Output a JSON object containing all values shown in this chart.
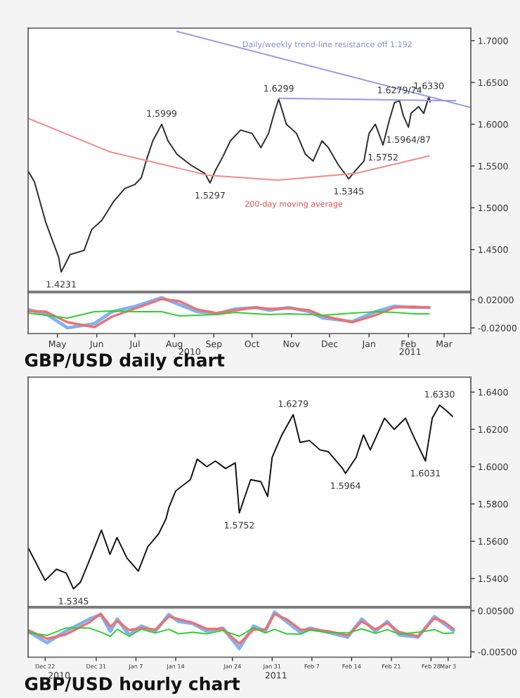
{
  "chart_data": [
    {
      "type": "line",
      "tick_labels": "y",
      "xlim": [
        "2010-04-22",
        "2011-04-05"
      ],
      "ylim": [
        1.4,
        1.715
      ],
      "yticks": [
        {
          "value": 1.45,
          "label": "1.4500"
        },
        {
          "value": 1.5,
          "label": "1.5000"
        },
        {
          "value": 1.55,
          "label": "1.5500"
        },
        {
          "value": 1.6,
          "label": "1.6000"
        },
        {
          "value": 1.65,
          "label": "1.6500"
        },
        {
          "value": 1.7,
          "label": "1.7000"
        }
      ],
      "series": [
        {
          "color": "#2b2b2b",
          "x": [
            "2010-04-22",
            "2010-04-27",
            "2010-05-06",
            "2010-05-16",
            "2010-05-18",
            "2010-05-25",
            "2010-06-05",
            "2010-06-11",
            "2010-06-19",
            "2010-06-28",
            "2010-07-07",
            "2010-07-15",
            "2010-07-20",
            "2010-07-24",
            "2010-07-29",
            "2010-08-05",
            "2010-08-10",
            "2010-08-17",
            "2010-08-28",
            "2010-09-08",
            "2010-09-12",
            "2010-09-16",
            "2010-09-22",
            "2010-09-28",
            "2010-10-06",
            "2010-10-15",
            "2010-10-22",
            "2010-10-28",
            "2010-11-02",
            "2010-11-05",
            "2010-11-11",
            "2010-11-19",
            "2010-11-26",
            "2010-12-02",
            "2010-12-09",
            "2010-12-14",
            "2010-12-22",
            "2010-12-28",
            "2010-12-30",
            "2011-01-04",
            "2011-01-11",
            "2011-01-15",
            "2011-01-20",
            "2011-01-26",
            "2011-01-31",
            "2011-02-04",
            "2011-02-08",
            "2011-02-11",
            "2011-02-15",
            "2011-02-17",
            "2011-02-23",
            "2011-02-27",
            "2011-03-03",
            "2011-03-04"
          ],
          "values": [
            1.544,
            1.531,
            1.482,
            1.441,
            1.4231,
            1.444,
            1.449,
            1.474,
            1.485,
            1.507,
            1.523,
            1.528,
            1.536,
            1.557,
            1.58,
            1.5999,
            1.58,
            1.564,
            1.551,
            1.541,
            1.5297,
            1.544,
            1.561,
            1.58,
            1.593,
            1.589,
            1.572,
            1.589,
            1.616,
            1.6299,
            1.6,
            1.589,
            1.564,
            1.556,
            1.58,
            1.572,
            1.551,
            1.539,
            1.5345,
            1.544,
            1.556,
            1.589,
            1.6,
            1.5752,
            1.605,
            1.626,
            1.6279,
            1.61,
            1.5964,
            1.613,
            1.621,
            1.613,
            1.633,
            1.627
          ]
        },
        {
          "color": "#f08a8a",
          "x": [
            "2010-04-22",
            "2010-06-25",
            "2010-09-10",
            "2010-11-04",
            "2011-01-04",
            "2011-03-03"
          ],
          "values": [
            1.607,
            1.567,
            1.539,
            1.533,
            1.541,
            1.562
          ]
        },
        {
          "color": "#9999dd",
          "x": [
            "2010-08-17",
            "2011-04-05"
          ],
          "values": [
            1.711,
            1.62
          ]
        },
        {
          "color": "#9999dd",
          "x": [
            "2010-11-05",
            "2011-03-24"
          ],
          "values": [
            1.631,
            1.628
          ]
        }
      ],
      "annotations": [
        {
          "text": "1.4231",
          "x": "2010-05-18",
          "y": 1.4231
        },
        {
          "text": "1.5999",
          "x": "2010-08-05",
          "y": 1.5999
        },
        {
          "text": "1.5297",
          "x": "2010-09-12",
          "y": 1.5297
        },
        {
          "text": "1.6299",
          "x": "2010-11-05",
          "y": 1.6299
        },
        {
          "text": "1.5345",
          "x": "2010-12-30",
          "y": 1.5345
        },
        {
          "text": "1.5752",
          "x": "2011-01-26",
          "y": 1.5752
        },
        {
          "text": "1.6279/74",
          "x": "2011-02-08",
          "y": 1.6279
        },
        {
          "text": "1.5964/87",
          "x": "2011-02-15",
          "y": 1.5964
        },
        {
          "text": "1.6330",
          "x": "2011-03-03",
          "y": 1.633
        },
        "Daily/weekly trend-line resistance off 1.192",
        "200-day moving average"
      ]
    },
    {
      "type": "line",
      "xlim": [
        "2010-04-22",
        "2011-04-05"
      ],
      "ylim": [
        -0.028,
        0.03
      ],
      "yticks": [
        {
          "value": -0.02,
          "label": "-0.02000"
        },
        {
          "value": 0.02,
          "label": "0.02000"
        }
      ],
      "xticks": [
        {
          "value": "2010-05-15",
          "label": "May"
        },
        {
          "value": "2010-06-15",
          "label": "Jun"
        },
        {
          "value": "2010-07-15",
          "label": "Jul"
        },
        {
          "value": "2010-08-15",
          "label": "Aug"
        },
        {
          "value": "2010-09-15",
          "label": "Sep"
        },
        {
          "value": "2010-10-15",
          "label": "Oct"
        },
        {
          "value": "2010-11-15",
          "label": "Nov"
        },
        {
          "value": "2010-12-15",
          "label": "Dec"
        },
        {
          "value": "2011-01-15",
          "label": "Jan"
        },
        {
          "value": "2011-02-15",
          "label": "Feb"
        },
        {
          "value": "2011-03-15",
          "label": "Mar"
        }
      ],
      "x": [
        "2010-04-22",
        "2010-05-06",
        "2010-05-23",
        "2010-06-13",
        "2010-06-27",
        "2010-07-16",
        "2010-08-05",
        "2010-08-19",
        "2010-09-02",
        "2010-09-17",
        "2010-10-02",
        "2010-10-18",
        "2010-10-29",
        "2010-11-13",
        "2010-11-29",
        "2010-12-10",
        "2011-01-02",
        "2011-01-20",
        "2011-02-04",
        "2011-02-19",
        "2011-03-03"
      ],
      "series": [
        {
          "color": "#7fb2f0",
          "values": [
            0.006,
            0,
            -0.02,
            -0.014,
            0.003,
            0.011,
            0.023,
            0.013,
            0.003,
            0,
            0.007,
            0.009,
            0.005,
            0.009,
            0.003,
            -0.006,
            -0.011,
            0.003,
            0.011,
            0.009,
            0.009
          ]
        },
        {
          "color": "#f07070",
          "values": [
            0.004,
            0.003,
            -0.012,
            -0.019,
            -0.004,
            0.008,
            0.021,
            0.018,
            0.006,
            0.001,
            0.005,
            0.009,
            0.007,
            0.008,
            0.005,
            -0.003,
            -0.012,
            -0.002,
            0.009,
            0.01,
            0.009
          ]
        },
        {
          "color": "#33cc33",
          "values": [
            0.001,
            -0.002,
            -0.006,
            0.003,
            0.004,
            0.003,
            0.003,
            -0.003,
            -0.002,
            -0.001,
            0.002,
            0,
            -0.001,
            0,
            -0.001,
            -0.002,
            0.001,
            0.003,
            0.002,
            0,
            0
          ]
        }
      ],
      "annotations": [
        "2010",
        "2011",
        "GBP/USD daily chart"
      ]
    },
    {
      "type": "line",
      "tick_labels": "y",
      "xlim": [
        "2010-12-19",
        "2011-03-07"
      ],
      "ylim": [
        1.525,
        1.648
      ],
      "yticks": [
        {
          "value": 1.54,
          "label": "1.5400"
        },
        {
          "value": 1.56,
          "label": "1.5600"
        },
        {
          "value": 1.58,
          "label": "1.5800"
        },
        {
          "value": 1.6,
          "label": "1.6000"
        },
        {
          "value": 1.62,
          "label": "1.6200"
        },
        {
          "value": 1.64,
          "label": "1.6400"
        }
      ],
      "series": [
        {
          "color": "#111111",
          "x": [
            "2010-12-19",
            "2010-12-22",
            "2010-12-24",
            "2010-12-25T17:00",
            "2010-12-27",
            "2010-12-28T05:00",
            "2010-12-29T17:00",
            "2010-12-31T22:00",
            "2011-01-02T10:00",
            "2011-01-03T16:00",
            "2011-01-05T10:00",
            "2011-01-07T10:00",
            "2011-01-09T02:00",
            "2011-01-11",
            "2011-01-12T07:00",
            "2011-01-12T19:00",
            "2011-01-14",
            "2011-01-16T14:00",
            "2011-01-17T19:00",
            "2011-01-19T12:00",
            "2011-01-21",
            "2011-01-22T19:00",
            "2011-01-24T12:00",
            "2011-01-25T05:00",
            "2011-01-27T05:00",
            "2011-01-29",
            "2011-01-30T05:00",
            "2011-01-31",
            "2011-02-01T17:00",
            "2011-02-03T17:00",
            "2011-02-04T22:00",
            "2011-02-06T14:00",
            "2011-02-08T10:00",
            "2011-02-09T22:00",
            "2011-02-12T10:00",
            "2011-02-12T22:00",
            "2011-02-14T19:00",
            "2011-02-16T02:00",
            "2011-02-17T07:00",
            "2011-02-19T19:00",
            "2011-02-21T12:00",
            "2011-02-23T12:00",
            "2011-02-24T19:00",
            "2011-02-27",
            "2011-02-28T05:00",
            "2011-03-01T12:00",
            "2011-03-02T17:00",
            "2011-03-03T18:00"
          ],
          "values": [
            1.5565,
            1.539,
            1.545,
            1.543,
            1.5345,
            1.538,
            1.549,
            1.566,
            1.553,
            1.562,
            1.551,
            1.544,
            1.557,
            1.564,
            1.572,
            1.578,
            1.587,
            1.593,
            1.604,
            1.6,
            1.603,
            1.599,
            1.602,
            1.5752,
            1.593,
            1.592,
            1.584,
            1.605,
            1.617,
            1.6279,
            1.613,
            1.614,
            1.609,
            1.608,
            1.599,
            1.5964,
            1.605,
            1.617,
            1.609,
            1.626,
            1.62,
            1.626,
            1.617,
            1.6031,
            1.626,
            1.633,
            1.63,
            1.627
          ]
        }
      ],
      "annotations": [
        {
          "text": "1.5345",
          "x": "2010-12-27",
          "y": 1.5345
        },
        {
          "text": "1.5752",
          "x": "2011-01-25T05:00",
          "y": 1.5752
        },
        {
          "text": "1.6279",
          "x": "2011-02-03T17:00",
          "y": 1.6279
        },
        {
          "text": "1.5964",
          "x": "2011-02-12T22:00",
          "y": 1.5964
        },
        {
          "text": "1.6031",
          "x": "2011-02-27",
          "y": 1.6031
        },
        {
          "text": "1.6330",
          "x": "2011-03-01T12:00",
          "y": 1.633
        }
      ]
    },
    {
      "type": "line",
      "xlim": [
        "2010-12-19",
        "2011-03-07"
      ],
      "ylim": [
        -0.0063,
        0.0057
      ],
      "yticks": [
        {
          "value": -0.005,
          "label": "-0.00500"
        },
        {
          "value": 0.005,
          "label": "0.00500"
        }
      ],
      "xticks": [
        {
          "value": "2010-12-22",
          "label": "Dec 22"
        },
        {
          "value": "2010-12-31",
          "label": "Dec 31"
        },
        {
          "value": "2011-01-07",
          "label": "Jan 7"
        },
        {
          "value": "2011-01-14",
          "label": "Jan 14"
        },
        {
          "value": "2011-01-24",
          "label": "Jan 24"
        },
        {
          "value": "2011-01-31",
          "label": "Jan 31"
        },
        {
          "value": "2011-02-07",
          "label": "Feb 7"
        },
        {
          "value": "2011-02-14",
          "label": "Feb 14"
        },
        {
          "value": "2011-02-21",
          "label": "Feb 21"
        },
        {
          "value": "2011-02-28",
          "label": "Feb 28"
        },
        {
          "value": "2011-03-03",
          "label": "Mar 3"
        }
      ],
      "x": [
        "2010-12-19",
        "2010-12-22T08:00",
        "2010-12-25T14:00",
        "2010-12-29T19:00",
        "2010-12-31T19:00",
        "2011-01-02T12:00",
        "2011-01-03T17:00",
        "2011-01-05T19:00",
        "2011-01-07T22:00",
        "2011-01-10T10:00",
        "2011-01-12T19:00",
        "2011-01-14T12:00",
        "2011-01-17",
        "2011-01-19T12:00",
        "2011-01-22T07:00",
        "2011-01-25T05:00",
        "2011-01-27T17:00",
        "2011-01-29T19:00",
        "2011-01-31T10:00",
        "2011-02-02T12:00",
        "2011-02-05",
        "2011-02-06T14:00",
        "2011-02-10",
        "2011-02-13T07:00",
        "2011-02-15T19:00",
        "2011-02-18T05:00",
        "2011-02-20T07:00",
        "2011-02-22T10:00",
        "2011-02-25T17:00",
        "2011-02-28T14:00",
        "2011-03-02T05:00",
        "2011-03-03T22:00"
      ],
      "series": [
        {
          "color": "#7fb2f0",
          "values": [
            0,
            -0.0028,
            0,
            0.003,
            0.0041,
            0,
            0.003,
            -0.0009,
            0.0013,
            0,
            0.0041,
            0.0024,
            0.0019,
            0,
            0.0008,
            -0.0042,
            0.0013,
            0,
            0.0047,
            0.0024,
            -0.0003,
            0.0008,
            -0.0003,
            -0.0014,
            0.003,
            0,
            0.0024,
            -0.0009,
            -0.0014,
            0.0036,
            0.0019,
            0.0002
          ]
        },
        {
          "color": "#f07070",
          "values": [
            0.0003,
            -0.0018,
            -0.0008,
            0.0022,
            0.0043,
            0.0012,
            0.0025,
            0.0003,
            0.0008,
            0.0004,
            0.0036,
            0.003,
            0.0021,
            0.0006,
            0.0006,
            -0.003,
            0.0004,
            0.0004,
            0.0042,
            0.003,
            0.0004,
            0.0005,
            0,
            -0.001,
            0.0024,
            0.0005,
            0.002,
            -0.0002,
            -0.0012,
            0.0032,
            0.0024,
            0.0006
          ]
        },
        {
          "color": "#33cc33",
          "values": [
            -0.0003,
            -0.001,
            0.0008,
            0.0008,
            -0.0002,
            -0.0012,
            0.0005,
            -0.0012,
            0.0005,
            -0.0004,
            0.0005,
            -0.0006,
            -0.0002,
            -0.0006,
            0.0002,
            -0.0012,
            0.0009,
            -0.0004,
            0.0005,
            -0.0006,
            -0.0007,
            0.0003,
            -0.0003,
            -0.0004,
            0.0006,
            -0.0005,
            0.0004,
            -0.0007,
            -0.0002,
            0.0004,
            -0.0005,
            -0.0004
          ]
        }
      ],
      "annotations": [
        "2010",
        "2011",
        "GBP/USD hourly chart"
      ]
    }
  ]
}
